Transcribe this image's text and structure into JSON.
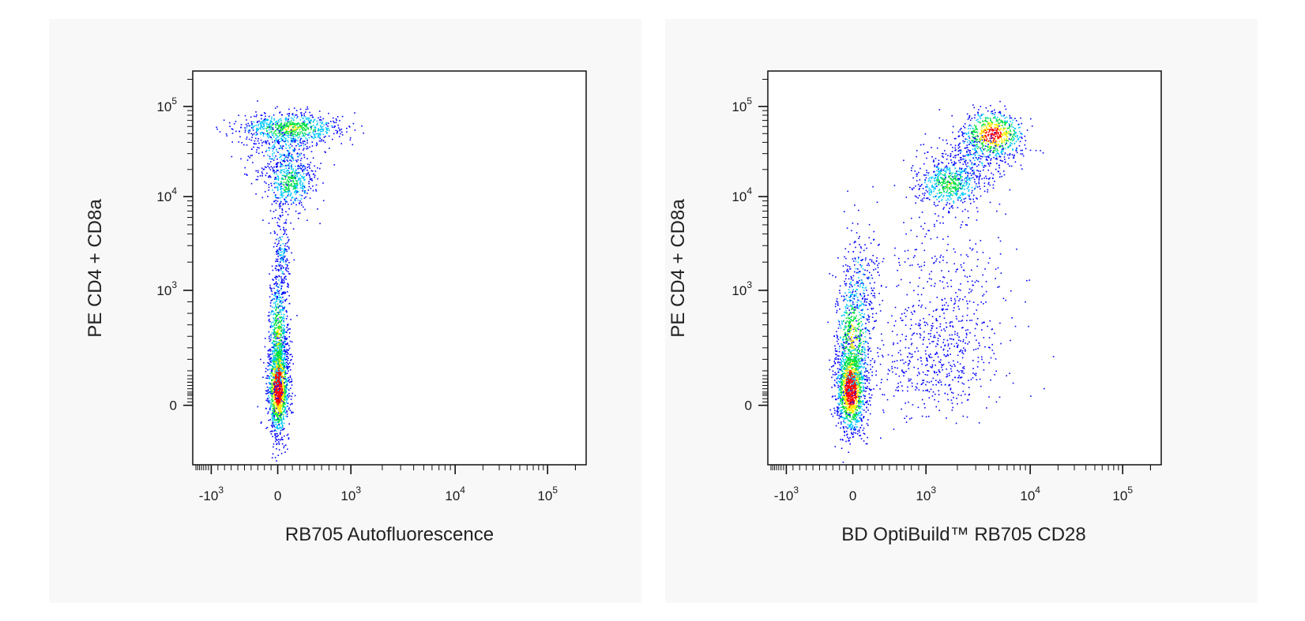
{
  "colors": {
    "panel_background": "#f8f8f8",
    "density_low": "#0000ff",
    "density_mid_low": "#00c8ff",
    "density_mid": "#00e040",
    "density_mid_high": "#ffee00",
    "density_high": "#ff0000"
  },
  "chart_data": [
    {
      "type": "scatter",
      "subtype": "flow-cytometry pseudocolor density dot plot",
      "xlabel": "RB705 Autofluorescence",
      "ylabel": "PE CD4 + CD8a",
      "x_scale": "biexponential",
      "y_scale": "biexponential",
      "xlim": [
        -2000,
        250000
      ],
      "ylim": [
        -700,
        250000
      ],
      "x_tick_labels": [
        {
          "value": -1000,
          "base": "-10",
          "exp": "3"
        },
        {
          "value": 0,
          "base": "0",
          "exp": ""
        },
        {
          "value": 1000,
          "base": "10",
          "exp": "3"
        },
        {
          "value": 10000,
          "base": "10",
          "exp": "4"
        },
        {
          "value": 100000,
          "base": "10",
          "exp": "5"
        }
      ],
      "y_tick_labels": [
        {
          "value": 0,
          "base": "0",
          "exp": ""
        },
        {
          "value": 1000,
          "base": "10",
          "exp": "3"
        },
        {
          "value": 10000,
          "base": "10",
          "exp": "4"
        },
        {
          "value": 100000,
          "base": "10",
          "exp": "5"
        }
      ],
      "populations": [
        {
          "x_center": 0,
          "y_center": 0,
          "x_spread": 150,
          "y_spread": "0 to 1000",
          "density": "high",
          "events": 1500
        },
        {
          "x_center": 50,
          "y_center": 50000,
          "x_spread": 400,
          "y_spread": "35000 to 80000",
          "density": "medium",
          "events": 700
        },
        {
          "x_center": 0,
          "y_center": 17000,
          "x_spread": 300,
          "y_spread": "10000 to 25000",
          "density": "medium",
          "events": 500
        },
        {
          "x_center": 0,
          "y_center": 3000,
          "x_spread": 150,
          "y_spread": "1000 to 10000",
          "density": "low",
          "events": 300
        }
      ],
      "grid": false,
      "legend": "none"
    },
    {
      "type": "scatter",
      "subtype": "flow-cytometry pseudocolor density dot plot",
      "xlabel": "BD OptiBuild™ RB705 CD28",
      "ylabel": "PE CD4 + CD8a",
      "x_scale": "biexponential",
      "y_scale": "biexponential",
      "xlim": [
        -2000,
        250000
      ],
      "ylim": [
        -700,
        250000
      ],
      "x_tick_labels": [
        {
          "value": -1000,
          "base": "-10",
          "exp": "3"
        },
        {
          "value": 0,
          "base": "0",
          "exp": ""
        },
        {
          "value": 1000,
          "base": "10",
          "exp": "3"
        },
        {
          "value": 10000,
          "base": "10",
          "exp": "4"
        },
        {
          "value": 100000,
          "base": "10",
          "exp": "5"
        }
      ],
      "y_tick_labels": [
        {
          "value": 0,
          "base": "0",
          "exp": ""
        },
        {
          "value": 1000,
          "base": "10",
          "exp": "3"
        },
        {
          "value": 10000,
          "base": "10",
          "exp": "4"
        },
        {
          "value": 100000,
          "base": "10",
          "exp": "5"
        }
      ],
      "populations": [
        {
          "x_center": 0,
          "y_center": 0,
          "x_spread": 200,
          "y_spread": "0 to 1000",
          "density": "high",
          "events": 1500
        },
        {
          "x_center": 3500,
          "y_center": 50000,
          "x_spread": "2000 to 9000",
          "y_spread": "35000 to 80000",
          "density": "high",
          "events": 600
        },
        {
          "x_center": 1500,
          "y_center": 14000,
          "x_spread": "700 to 3000",
          "y_spread": "9000 to 22000",
          "density": "medium",
          "events": 500
        },
        {
          "x_center": 2000,
          "y_center": 400,
          "x_spread": "300 to 6000",
          "y_spread": "0 to 2000",
          "density": "low",
          "events": 500
        },
        {
          "x_center": 2000,
          "y_center": 4000,
          "x_spread": "500 to 6000",
          "y_spread": "1000 to 10000",
          "density": "low",
          "events": 250
        }
      ],
      "grid": false,
      "legend": "none"
    }
  ]
}
